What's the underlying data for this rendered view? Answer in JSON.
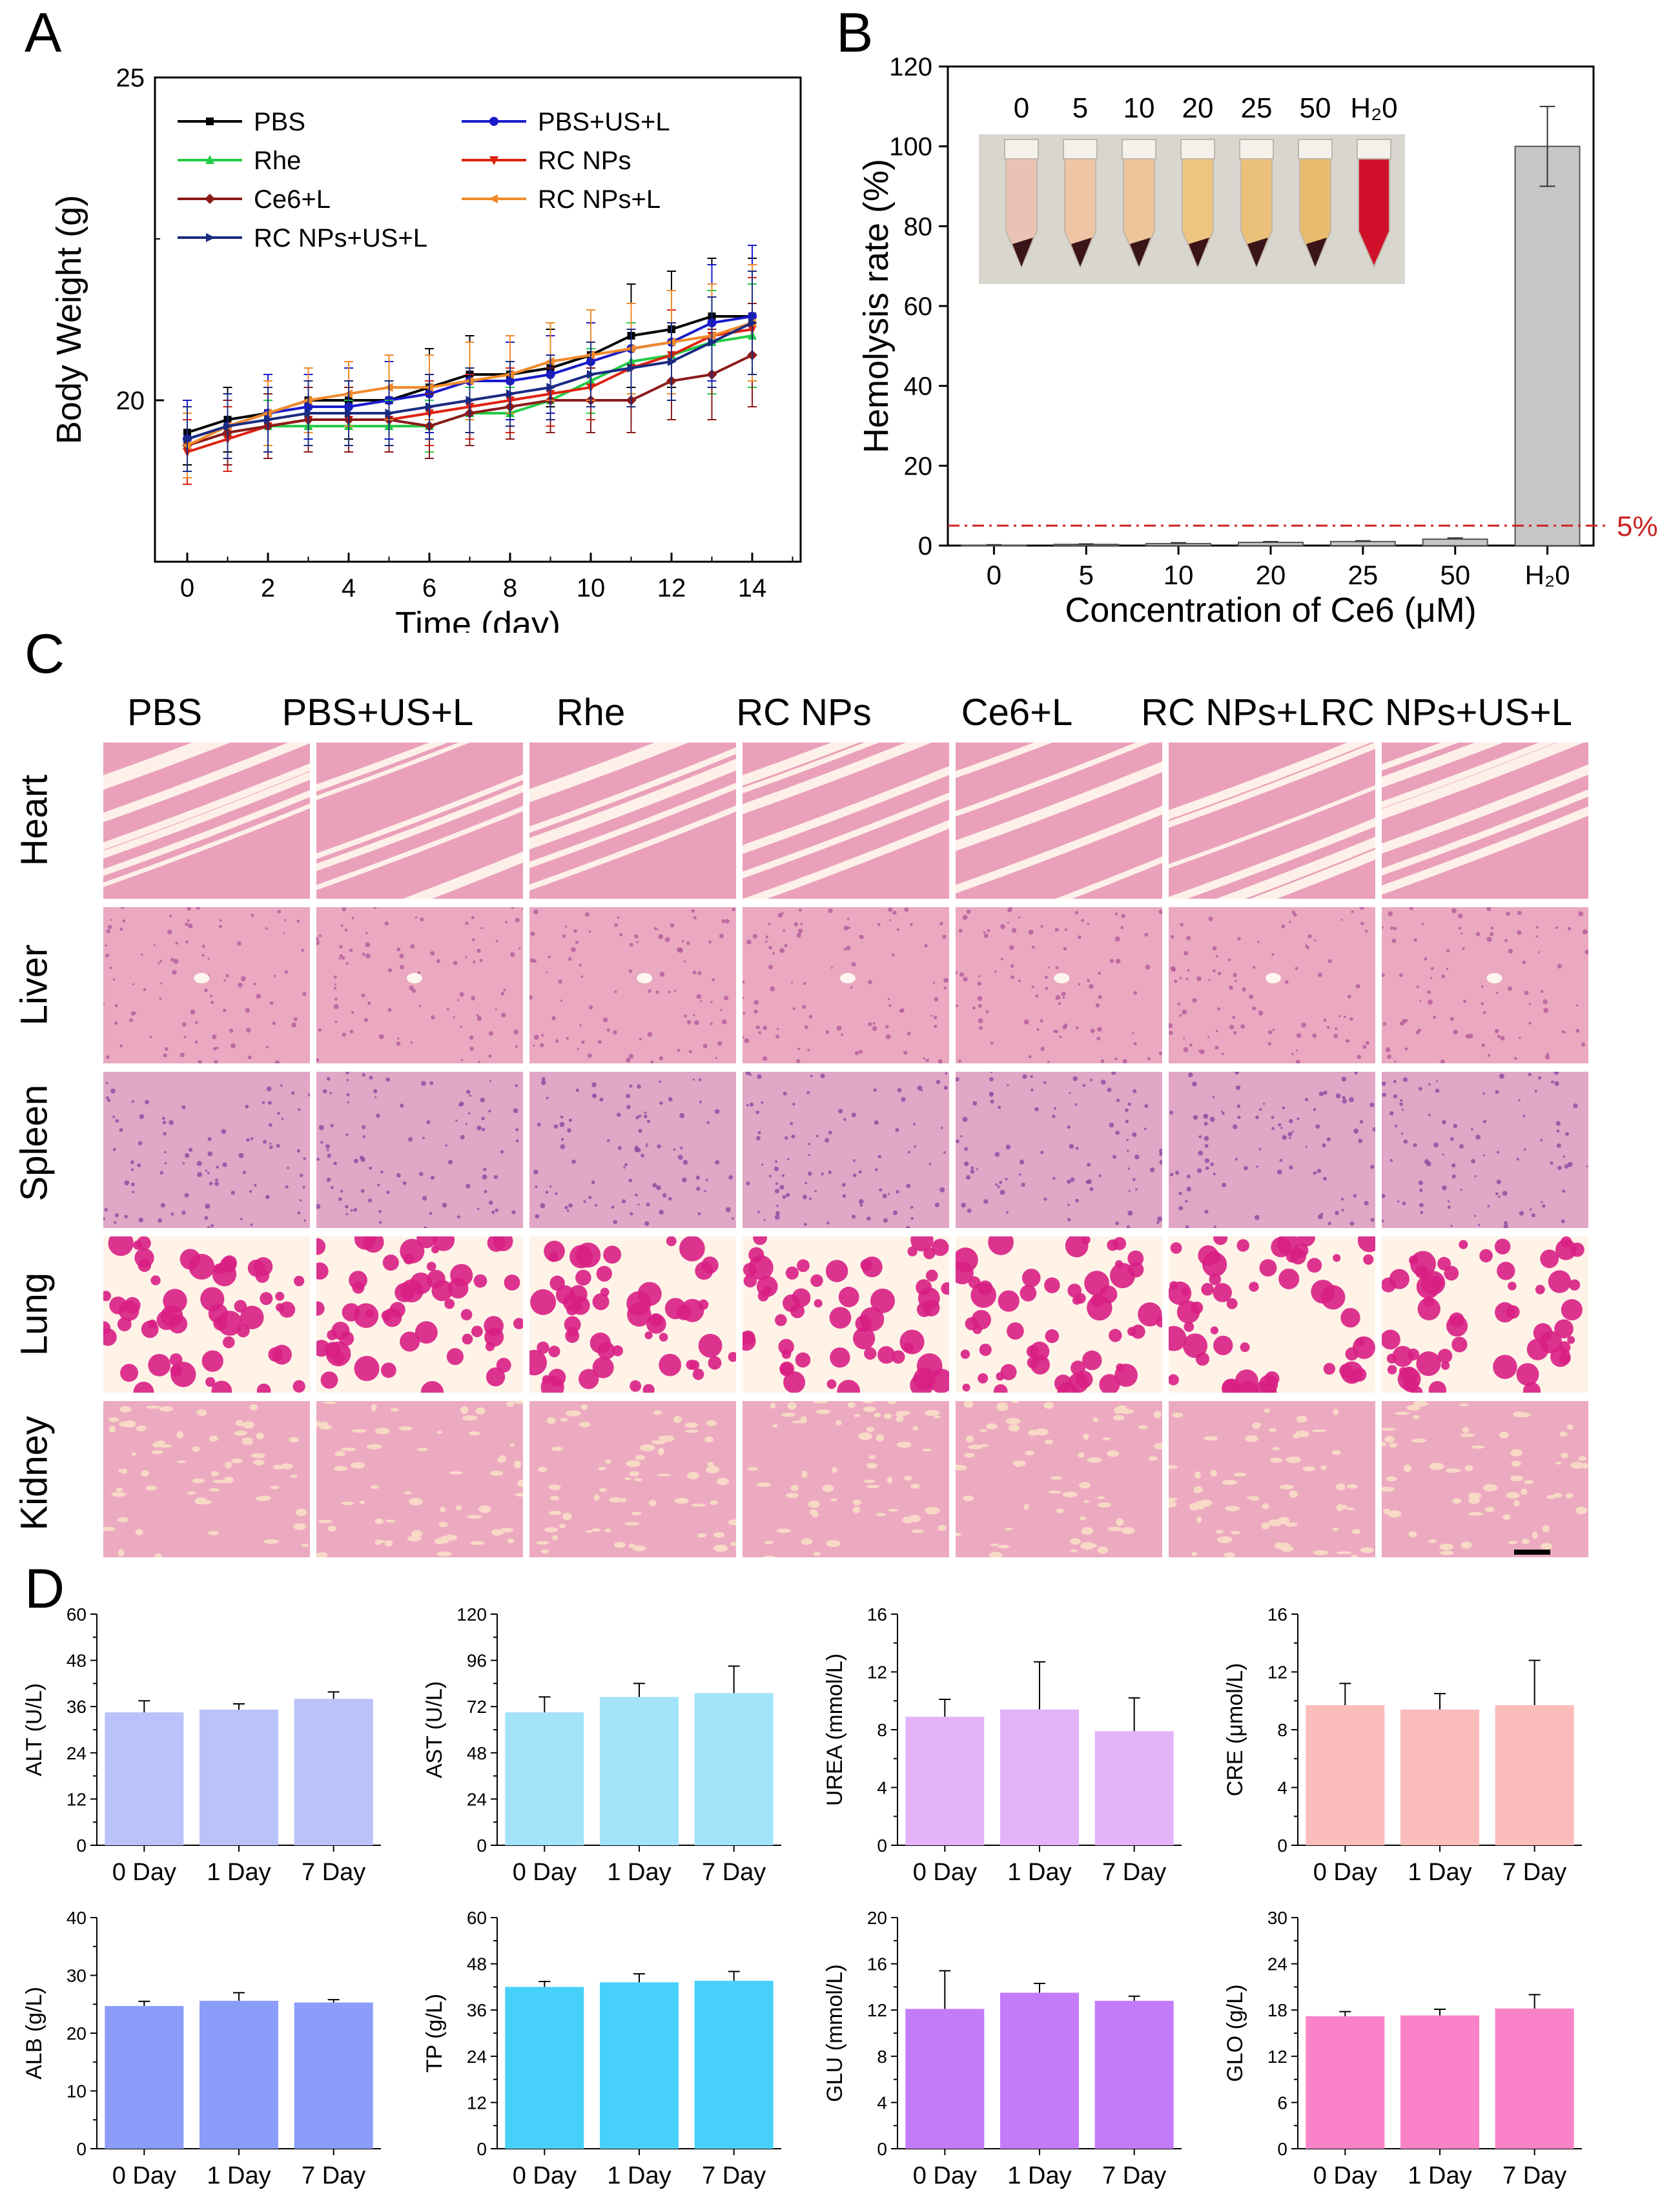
{
  "panels": {
    "a": "A",
    "b": "B",
    "c": "C",
    "d": "D"
  },
  "chart_data": [
    {
      "id": "A",
      "type": "line",
      "xlabel": "Time (day)",
      "ylabel": "Body Weight (g)",
      "xlim": [
        -0.8,
        15.2
      ],
      "ylim": [
        17.5,
        25
      ],
      "xticks": [
        0,
        2,
        4,
        6,
        8,
        10,
        12,
        14
      ],
      "yticks": [
        20,
        25
      ],
      "x": [
        0,
        1,
        2,
        3,
        4,
        5,
        6,
        7,
        8,
        9,
        10,
        11,
        12,
        13,
        14
      ],
      "series": [
        {
          "name": "PBS",
          "color": "#000000",
          "marker": "square",
          "values": [
            19.5,
            19.7,
            19.8,
            20.0,
            20.0,
            20.0,
            20.2,
            20.4,
            20.4,
            20.5,
            20.7,
            21.0,
            21.1,
            21.3,
            21.3
          ],
          "errors": [
            0.5,
            0.5,
            0.5,
            0.5,
            0.6,
            0.6,
            0.6,
            0.6,
            0.6,
            0.6,
            0.7,
            0.8,
            0.9,
            0.9,
            0.9
          ]
        },
        {
          "name": "PBS+US+L",
          "color": "#1a1acc",
          "marker": "circle",
          "values": [
            19.4,
            19.6,
            19.8,
            19.9,
            19.9,
            20.0,
            20.1,
            20.3,
            20.3,
            20.4,
            20.6,
            20.8,
            20.9,
            21.2,
            21.3
          ],
          "errors": [
            0.6,
            0.5,
            0.6,
            0.5,
            0.6,
            0.6,
            0.6,
            0.6,
            0.6,
            0.6,
            0.6,
            0.7,
            0.8,
            0.9,
            1.1
          ]
        },
        {
          "name": "Rhe",
          "color": "#22cc44",
          "marker": "triangle-up",
          "values": [
            19.3,
            19.5,
            19.6,
            19.6,
            19.6,
            19.6,
            19.6,
            19.8,
            19.8,
            20.0,
            20.3,
            20.6,
            20.7,
            20.9,
            21.0
          ],
          "errors": [
            0.4,
            0.4,
            0.4,
            0.4,
            0.4,
            0.4,
            0.4,
            0.4,
            0.4,
            0.5,
            0.5,
            0.6,
            0.7,
            0.8,
            0.8
          ]
        },
        {
          "name": "RC NPs",
          "color": "#dd2211",
          "marker": "triangle-down",
          "values": [
            19.2,
            19.4,
            19.6,
            19.7,
            19.7,
            19.7,
            19.8,
            19.9,
            20.0,
            20.1,
            20.2,
            20.5,
            20.7,
            21.0,
            21.1
          ],
          "errors": [
            0.5,
            0.5,
            0.5,
            0.5,
            0.5,
            0.5,
            0.5,
            0.5,
            0.5,
            0.5,
            0.5,
            0.6,
            0.7,
            0.8,
            0.8
          ]
        },
        {
          "name": "Ce6+L",
          "color": "#8b1a1a",
          "marker": "diamond",
          "values": [
            19.3,
            19.5,
            19.6,
            19.7,
            19.7,
            19.7,
            19.6,
            19.8,
            19.9,
            20.0,
            20.0,
            20.0,
            20.3,
            20.4,
            20.7
          ],
          "errors": [
            0.5,
            0.5,
            0.5,
            0.5,
            0.5,
            0.5,
            0.5,
            0.5,
            0.5,
            0.5,
            0.5,
            0.5,
            0.6,
            0.7,
            0.8
          ]
        },
        {
          "name": "RC NPs+L",
          "color": "#f08a2a",
          "marker": "triangle-left",
          "values": [
            19.3,
            19.6,
            19.8,
            20.0,
            20.1,
            20.2,
            20.2,
            20.3,
            20.4,
            20.6,
            20.7,
            20.8,
            20.9,
            21.0,
            21.2
          ],
          "errors": [
            0.5,
            0.5,
            0.5,
            0.5,
            0.5,
            0.5,
            0.5,
            0.6,
            0.6,
            0.6,
            0.7,
            0.7,
            0.8,
            0.8,
            0.9
          ]
        },
        {
          "name": "RC NPs+US+L",
          "color": "#1a2a80",
          "marker": "triangle-right",
          "values": [
            19.4,
            19.6,
            19.7,
            19.8,
            19.8,
            19.8,
            19.9,
            20.0,
            20.1,
            20.2,
            20.4,
            20.5,
            20.6,
            20.9,
            21.2
          ],
          "errors": [
            0.5,
            0.5,
            0.5,
            0.5,
            0.5,
            0.5,
            0.5,
            0.5,
            0.5,
            0.5,
            0.5,
            0.6,
            0.6,
            0.7,
            0.8
          ]
        }
      ]
    },
    {
      "id": "B",
      "type": "bar",
      "xlabel": "Concentration of Ce6 (μM)",
      "ylabel": "Hemolysis rate (%)",
      "categories": [
        "0",
        "5",
        "10",
        "20",
        "25",
        "50",
        "H₂0"
      ],
      "values": [
        0.1,
        0.3,
        0.5,
        0.8,
        1.0,
        1.6,
        100
      ],
      "errors": [
        0.1,
        0.1,
        0.2,
        0.2,
        0.2,
        0.3,
        10
      ],
      "ylim": [
        0,
        120
      ],
      "yticks": [
        0,
        20,
        40,
        60,
        80,
        100,
        120
      ],
      "threshold": {
        "value": 5,
        "label": "5%"
      },
      "inset_labels": [
        "0",
        "5",
        "10",
        "20",
        "25",
        "50",
        "H₂0"
      ]
    },
    {
      "id": "ALT",
      "type": "bar",
      "ylabel": "ALT (U/L)",
      "categories": [
        "0 Day",
        "1 Day",
        "7 Day"
      ],
      "values": [
        34.5,
        35.2,
        38.0
      ],
      "errors": [
        3.0,
        1.5,
        1.8
      ],
      "ylim": [
        0,
        60
      ],
      "yticks": [
        0,
        12,
        24,
        36,
        48,
        60
      ],
      "color": "#bac2fa"
    },
    {
      "id": "AST",
      "type": "bar",
      "ylabel": "AST (U/L)",
      "categories": [
        "0 Day",
        "1 Day",
        "7 Day"
      ],
      "values": [
        69,
        77,
        79
      ],
      "errors": [
        8,
        7,
        14
      ],
      "ylim": [
        0,
        120
      ],
      "yticks": [
        0,
        24,
        48,
        72,
        96,
        120
      ],
      "color": "#a3e3fa"
    },
    {
      "id": "UREA",
      "type": "bar",
      "ylabel": "UREA (mmol/L)",
      "categories": [
        "0 Day",
        "1 Day",
        "7 Day"
      ],
      "values": [
        8.9,
        9.4,
        7.9
      ],
      "errors": [
        1.2,
        3.3,
        2.3
      ],
      "ylim": [
        0,
        16
      ],
      "yticks": [
        0,
        4,
        8,
        12,
        16
      ],
      "color": "#e3b3fa"
    },
    {
      "id": "CRE",
      "type": "bar",
      "ylabel": "CRE (μmol/L)",
      "categories": [
        "0 Day",
        "1 Day",
        "7 Day"
      ],
      "values": [
        9.7,
        9.4,
        9.7
      ],
      "errors": [
        1.5,
        1.1,
        3.1
      ],
      "ylim": [
        0,
        16
      ],
      "yticks": [
        0,
        4,
        8,
        12,
        16
      ],
      "color": "#fbbcbc"
    },
    {
      "id": "ALB",
      "type": "bar",
      "ylabel": "ALB (g/L)",
      "categories": [
        "0 Day",
        "1 Day",
        "7 Day"
      ],
      "values": [
        24.7,
        25.6,
        25.3
      ],
      "errors": [
        0.8,
        1.4,
        0.5
      ],
      "ylim": [
        0,
        40
      ],
      "yticks": [
        0,
        10,
        20,
        30,
        40
      ],
      "color": "#8b9cfa"
    },
    {
      "id": "TP",
      "type": "bar",
      "ylabel": "TP (g/L)",
      "categories": [
        "0 Day",
        "1 Day",
        "7 Day"
      ],
      "values": [
        42.0,
        43.2,
        43.6
      ],
      "errors": [
        1.4,
        2.2,
        2.4
      ],
      "ylim": [
        0,
        60
      ],
      "yticks": [
        0,
        12,
        24,
        36,
        48,
        60
      ],
      "color": "#47d1fa"
    },
    {
      "id": "GLU",
      "type": "bar",
      "ylabel": "GLU (mmol/L)",
      "categories": [
        "0 Day",
        "1 Day",
        "7 Day"
      ],
      "values": [
        12.1,
        13.5,
        12.8
      ],
      "errors": [
        3.3,
        0.8,
        0.4
      ],
      "ylim": [
        0,
        20
      ],
      "yticks": [
        0,
        4,
        8,
        12,
        16,
        20
      ],
      "color": "#c47bfa"
    },
    {
      "id": "GLO",
      "type": "bar",
      "ylabel": "GLO (g/L)",
      "categories": [
        "0 Day",
        "1 Day",
        "7 Day"
      ],
      "values": [
        17.2,
        17.3,
        18.2
      ],
      "errors": [
        0.6,
        0.8,
        1.8
      ],
      "ylim": [
        0,
        30
      ],
      "yticks": [
        0,
        6,
        12,
        18,
        24,
        30
      ],
      "color": "#fa82c8"
    }
  ],
  "histology": {
    "columns": [
      "PBS",
      "PBS+US+L",
      "Rhe",
      "RC NPs",
      "Ce6+L",
      "RC NPs+L",
      "RC NPs+US+L"
    ],
    "rows": [
      "Heart",
      "Liver",
      "Spleen",
      "Lung",
      "Kidney"
    ]
  }
}
